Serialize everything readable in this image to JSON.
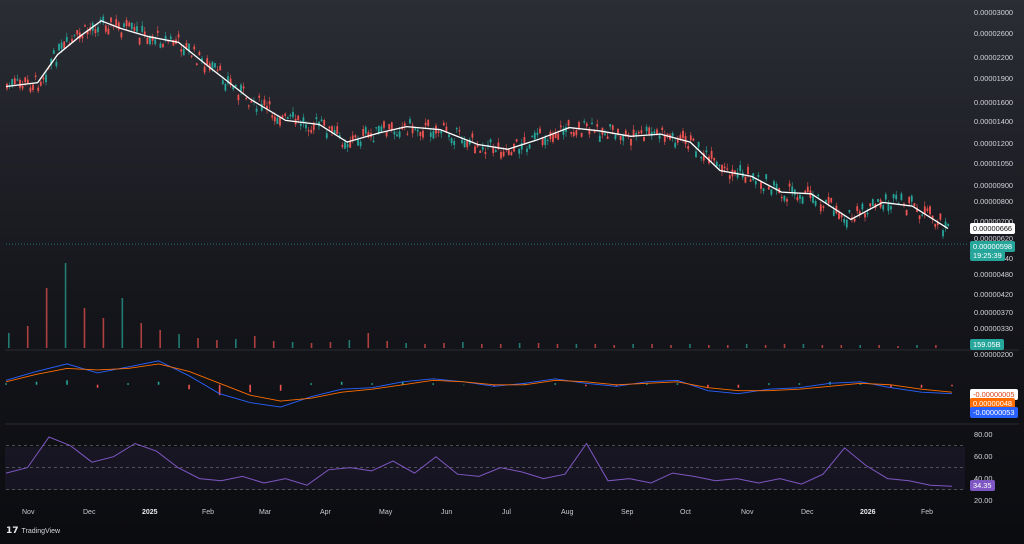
{
  "chart_data": [
    {
      "type": "candlestick",
      "title": "",
      "scale": "log",
      "y_tick_labels": [
        "0.00003000",
        "0.00002600",
        "0.00002200",
        "0.00001900",
        "0.00001600",
        "0.00001400",
        "0.00001200",
        "0.00001050",
        "0.00000900",
        "0.00000800",
        "0.00000700",
        "0.00000620",
        "0.00000540",
        "0.00000480",
        "0.00000420",
        "0.00000370",
        "0.00000330"
      ],
      "ylim": [
        3.1e-06,
        3.16e-05
      ],
      "x_tick_labels": [
        "Nov",
        "Dec",
        "2025",
        "Feb",
        "Mar",
        "Apr",
        "May",
        "Jun",
        "Jul",
        "Aug",
        "Sep",
        "Oct",
        "Nov",
        "Dec",
        "2026",
        "Feb"
      ],
      "x_range": [
        "2024-10-25",
        "2026-02-14"
      ],
      "moving_average_points": [
        {
          "date": "2024-10-25",
          "value": 1.8e-05
        },
        {
          "date": "2024-11-10",
          "value": 1.85e-05
        },
        {
          "date": "2024-11-20",
          "value": 2.25e-05
        },
        {
          "date": "2024-12-01",
          "value": 2.55e-05
        },
        {
          "date": "2024-12-12",
          "value": 2.85e-05
        },
        {
          "date": "2024-12-22",
          "value": 2.7e-05
        },
        {
          "date": "2025-01-05",
          "value": 2.55e-05
        },
        {
          "date": "2025-01-20",
          "value": 2.45e-05
        },
        {
          "date": "2025-02-05",
          "value": 2.05e-05
        },
        {
          "date": "2025-02-25",
          "value": 1.65e-05
        },
        {
          "date": "2025-03-15",
          "value": 1.42e-05
        },
        {
          "date": "2025-04-01",
          "value": 1.38e-05
        },
        {
          "date": "2025-04-15",
          "value": 1.22e-05
        },
        {
          "date": "2025-05-01",
          "value": 1.3e-05
        },
        {
          "date": "2025-05-15",
          "value": 1.36e-05
        },
        {
          "date": "2025-06-01",
          "value": 1.33e-05
        },
        {
          "date": "2025-06-20",
          "value": 1.2e-05
        },
        {
          "date": "2025-07-05",
          "value": 1.16e-05
        },
        {
          "date": "2025-07-20",
          "value": 1.24e-05
        },
        {
          "date": "2025-08-05",
          "value": 1.35e-05
        },
        {
          "date": "2025-08-20",
          "value": 1.32e-05
        },
        {
          "date": "2025-09-05",
          "value": 1.27e-05
        },
        {
          "date": "2025-09-20",
          "value": 1.29e-05
        },
        {
          "date": "2025-10-05",
          "value": 1.22e-05
        },
        {
          "date": "2025-10-20",
          "value": 1e-05
        },
        {
          "date": "2025-11-05",
          "value": 9.6e-06
        },
        {
          "date": "2025-11-20",
          "value": 8.6e-06
        },
        {
          "date": "2025-12-05",
          "value": 8.5e-06
        },
        {
          "date": "2025-12-25",
          "value": 7.1e-06
        },
        {
          "date": "2026-01-10",
          "value": 8e-06
        },
        {
          "date": "2026-01-25",
          "value": 7.8e-06
        },
        {
          "date": "2026-02-12",
          "value": 6.66e-06
        }
      ],
      "price_line_value": 5.98e-06,
      "ma_tag": "0.00000666",
      "price_tag": "0.00000598",
      "countdown_tag": "19:25:39",
      "grid": false
    },
    {
      "type": "bar",
      "title": "",
      "values": [
        15,
        22,
        60,
        85,
        40,
        30,
        50,
        25,
        18,
        14,
        10,
        8,
        9,
        12,
        7,
        6,
        5,
        6,
        8,
        15,
        7,
        5,
        4,
        5,
        6,
        4,
        4,
        5,
        5,
        4,
        4,
        4,
        3,
        4,
        4,
        3,
        4,
        3,
        3,
        4,
        3,
        4,
        4,
        3,
        3,
        3,
        3,
        2,
        3,
        3
      ],
      "volume_tag": "159.05B"
    },
    {
      "type": "line",
      "title": "",
      "series": [
        {
          "name": "MACD",
          "values": [
            3e-07,
            9e-07,
            1.4e-06,
            8e-07,
            1.2e-06,
            1.6e-06,
            6e-07,
            -6e-07,
            -1.2e-06,
            -1.5e-06,
            -8e-07,
            -3e-07,
            -2e-07,
            2e-07,
            4e-07,
            2e-07,
            -1e-07,
            1e-07,
            4e-07,
            1e-07,
            -1e-07,
            2e-07,
            3e-07,
            -4e-07,
            -6e-07,
            -3e-07,
            -2e-07,
            1e-07,
            2e-07,
            -2e-07,
            -5e-07,
            -6e-07
          ]
        },
        {
          "name": "Signal",
          "values": [
            2e-07,
            7e-07,
            1.1e-06,
            1e-06,
            1.1e-06,
            1.4e-06,
            9e-07,
            1e-07,
            -7e-07,
            -1.1e-06,
            -9e-07,
            -5e-07,
            -3e-07,
            0.0,
            3e-07,
            2e-07,
            0.0,
            0.0,
            3e-07,
            2e-07,
            0.0,
            1e-07,
            2e-07,
            -2e-07,
            -4e-07,
            -4e-07,
            -3e-07,
            -1e-07,
            1e-07,
            0.0,
            -3e-07,
            -5e-07
          ]
        }
      ],
      "ylim": [
        -2.5e-06,
        2.2e-06
      ],
      "y_tick_labels": [
        "0.00000200",
        "-0.00000200"
      ],
      "tags": [
        "-0.00000005",
        "0.00000048",
        "-0.00000053"
      ]
    },
    {
      "type": "line",
      "title": "",
      "series": [
        {
          "name": "RSI",
          "values": [
            45,
            50,
            78,
            70,
            55,
            60,
            72,
            65,
            50,
            40,
            38,
            42,
            36,
            40,
            34,
            48,
            50,
            47,
            56,
            45,
            60,
            44,
            42,
            50,
            46,
            40,
            44,
            72,
            38,
            40,
            36,
            45,
            42,
            38,
            40,
            36,
            40,
            35,
            44,
            68,
            52,
            40,
            38,
            34,
            33
          ]
        }
      ],
      "ylim": [
        15,
        88
      ],
      "y_tick_labels": [
        "80.00",
        "60.00",
        "40.00",
        "20.00"
      ],
      "bands": [
        70,
        50,
        30
      ],
      "value_tag": "34.35"
    }
  ],
  "branding": {
    "name": "TradingView",
    "mark": "17"
  },
  "colors": {
    "bg_top": "#2b2d35",
    "bg_bottom": "#0b0c10",
    "up": "#26a69a",
    "down": "#ef5350",
    "ma": "#ffffff",
    "macd": "#2962ff",
    "signal": "#ff6d00",
    "rsi": "#7e57c2"
  }
}
